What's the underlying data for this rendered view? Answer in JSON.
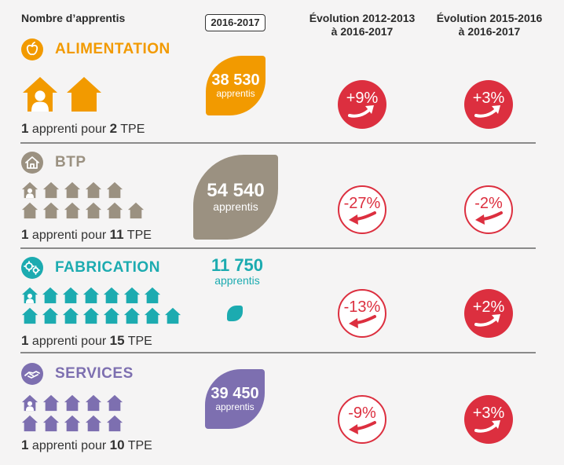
{
  "headers": {
    "left": "Nombre d’apprentis",
    "year": "2016-2017",
    "evo1": [
      "Évolution 2012-2013",
      "à 2016-2017"
    ],
    "evo2": [
      "Évolution 2015-2016",
      "à 2016-2017"
    ]
  },
  "colors": {
    "alimentation": "#f29a00",
    "btp": "#9b9181",
    "fabrication": "#1cabb0",
    "services": "#7d6fb0",
    "badge_red": "#dc2f3f",
    "text": "#2b2b2b"
  },
  "icons": {
    "alimentation": "apple-icon",
    "btp": "house-icon",
    "fabrication": "gears-icon",
    "services": "handshake-icon"
  },
  "chart_data": {
    "type": "table",
    "columns": [
      "Nombre d’apprentis",
      "2016-2017",
      "Évolution 2012-2013 à 2016-2017",
      "Évolution 2015-2016 à 2016-2017"
    ],
    "rows": [
      {
        "sector": "ALIMENTATION",
        "apprentis": "38 530",
        "apprentis_value": 38530,
        "unit": "apprentis",
        "ratio": {
          "prefix": "1 apprenti pour",
          "n": "2",
          "suffix": "TPE"
        },
        "tpe": 2,
        "evo_2012": "+9%",
        "evo_2012_value": 9,
        "evo_2015": "+3%",
        "evo_2015_value": 3
      },
      {
        "sector": "BTP",
        "apprentis": "54 540",
        "apprentis_value": 54540,
        "unit": "apprentis",
        "ratio": {
          "prefix": "1 apprenti pour",
          "n": "11",
          "suffix": "TPE"
        },
        "tpe": 11,
        "evo_2012": "-27%",
        "evo_2012_value": -27,
        "evo_2015": "-2%",
        "evo_2015_value": -2
      },
      {
        "sector": "FABRICATION",
        "apprentis": "11 750",
        "apprentis_value": 11750,
        "unit": "apprentis",
        "ratio": {
          "prefix": "1 apprenti pour",
          "n": "15",
          "suffix": "TPE"
        },
        "tpe": 15,
        "evo_2012": "-13%",
        "evo_2012_value": -13,
        "evo_2015": "+2%",
        "evo_2015_value": 2
      },
      {
        "sector": "SERVICES",
        "apprentis": "39 450",
        "apprentis_value": 39450,
        "unit": "apprentis",
        "ratio": {
          "prefix": "1 apprenti pour",
          "n": "10",
          "suffix": "TPE"
        },
        "tpe": 10,
        "evo_2012": "-9%",
        "evo_2012_value": -9,
        "evo_2015": "+3%",
        "evo_2015_value": 3
      }
    ]
  }
}
